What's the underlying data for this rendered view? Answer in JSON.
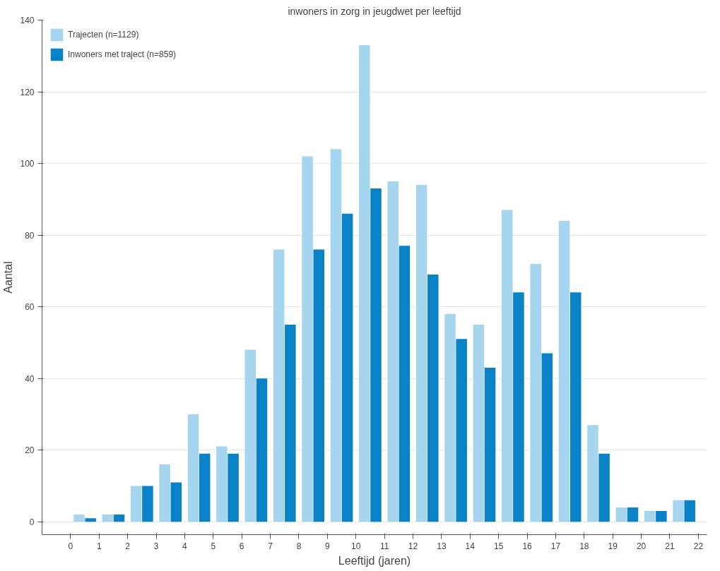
{
  "chart_data": {
    "type": "bar",
    "title": "inwoners in zorg in jeugdwet per leeftijd",
    "xlabel": "Leeftijd (jaren)",
    "ylabel": "Aantal",
    "x": [
      0.5,
      1.5,
      2.5,
      3.5,
      4.5,
      5.5,
      6.5,
      7.5,
      8.5,
      9.5,
      10.5,
      11.5,
      12.5,
      13.5,
      14.5,
      15.5,
      16.5,
      17.5,
      18.5,
      19.5,
      20.5,
      21.5
    ],
    "series": [
      {
        "name": "Trajecten (n=1129)",
        "color": "#a6d5f0",
        "values": [
          2,
          2,
          10,
          16,
          30,
          21,
          48,
          76,
          102,
          104,
          133,
          95,
          94,
          58,
          55,
          87,
          72,
          84,
          27,
          4,
          3,
          6
        ]
      },
      {
        "name": "Inwoners met traject (n=859)",
        "color": "#0a82c8",
        "values": [
          1,
          2,
          10,
          11,
          19,
          19,
          40,
          55,
          76,
          86,
          93,
          77,
          69,
          51,
          43,
          64,
          47,
          64,
          19,
          4,
          3,
          6
        ]
      }
    ],
    "xlim": [
      -1,
      22.3
    ],
    "xticks": [
      0,
      1,
      2,
      3,
      4,
      5,
      6,
      7,
      8,
      9,
      10,
      11,
      12,
      13,
      14,
      15,
      16,
      17,
      18,
      19,
      20,
      21,
      22
    ],
    "ylim": [
      -3.6,
      140
    ],
    "yticks": [
      0,
      20,
      40,
      60,
      80,
      100,
      120,
      140
    ],
    "grid": "y",
    "legend": "top left"
  }
}
